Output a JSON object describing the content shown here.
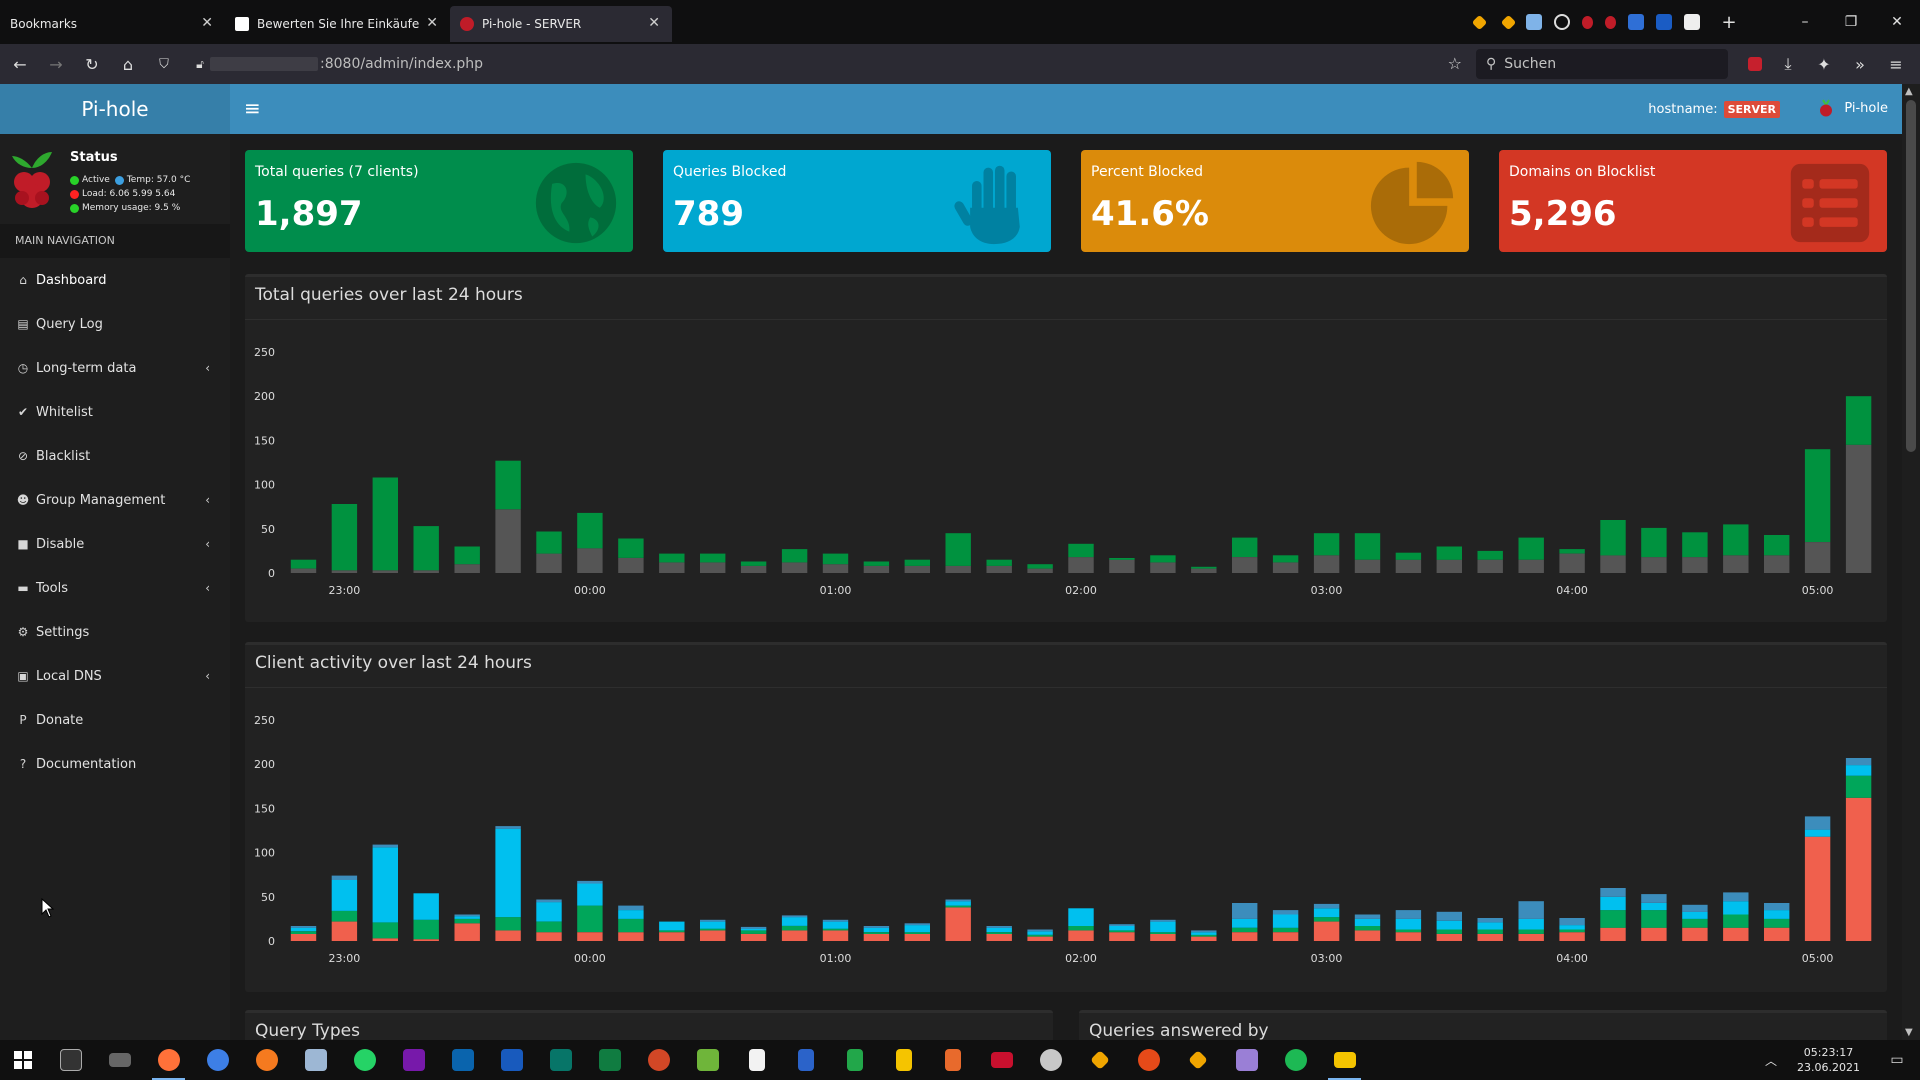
{
  "browser": {
    "tabs": [
      {
        "title": "Bookmarks",
        "active": false
      },
      {
        "title": "Bewerten Sie Ihre Einkäufe",
        "active": false
      },
      {
        "title": "Pi-hole - SERVER",
        "active": true
      }
    ],
    "url_suffix": ":8080/admin/index.php",
    "search_placeholder": "Suchen",
    "new_tab_label": "+"
  },
  "app": {
    "logo_text": "Pi-hole",
    "hostname_label": "hostname:",
    "hostname_value": "SERVER",
    "user_label": "Pi-hole"
  },
  "status": {
    "title": "Status",
    "active_label": "Active",
    "temp_label": "Temp: 57.0 °C",
    "load_label": "Load: 6.06 5.99 5.64",
    "memory_label": "Memory usage: 9.5 %"
  },
  "sidebar": {
    "header": "MAIN NAVIGATION",
    "items": [
      {
        "label": "Dashboard",
        "icon": "home-icon",
        "chevron": false,
        "active": true
      },
      {
        "label": "Query Log",
        "icon": "file-icon",
        "chevron": false
      },
      {
        "label": "Long-term data",
        "icon": "clock-icon",
        "chevron": true
      },
      {
        "label": "Whitelist",
        "icon": "check-circle-icon",
        "chevron": false
      },
      {
        "label": "Blacklist",
        "icon": "ban-icon",
        "chevron": false
      },
      {
        "label": "Group Management",
        "icon": "users-icon",
        "chevron": true
      },
      {
        "label": "Disable",
        "icon": "stop-icon",
        "chevron": true
      },
      {
        "label": "Tools",
        "icon": "folder-icon",
        "chevron": true
      },
      {
        "label": "Settings",
        "icon": "gears-icon",
        "chevron": false
      },
      {
        "label": "Local DNS",
        "icon": "address-book-icon",
        "chevron": true
      },
      {
        "label": "Donate",
        "icon": "paypal-icon",
        "chevron": false
      },
      {
        "label": "Documentation",
        "icon": "question-circle-icon",
        "chevron": false
      }
    ]
  },
  "stats": [
    {
      "label": "Total queries (7 clients)",
      "value": "1,897",
      "color": "#008d4c",
      "icon": "globe-icon"
    },
    {
      "label": "Queries Blocked",
      "value": "789",
      "color": "#00a7d0",
      "icon": "hand-icon"
    },
    {
      "label": "Percent Blocked",
      "value": "41.6%",
      "color": "#db8b0b",
      "icon": "pie-chart-icon"
    },
    {
      "label": "Domains on Blocklist",
      "value": "5,296",
      "color": "#d33724",
      "icon": "list-icon"
    }
  ],
  "panels": {
    "queries_title": "Total queries over last 24 hours",
    "clients_title": "Client activity over last 24 hours",
    "query_types_title": "Query Types",
    "answered_by_title": "Queries answered by"
  },
  "taskbar": {
    "time": "05:23:17",
    "date": "23.06.2021"
  },
  "chart_data": [
    {
      "type": "bar",
      "stacked": true,
      "title": "Total queries over last 24 hours",
      "ylim": [
        0,
        250
      ],
      "yticks": [
        0,
        50,
        100,
        150,
        200,
        250
      ],
      "xtick_labels": [
        "23:00",
        "00:00",
        "01:00",
        "02:00",
        "03:00",
        "04:00",
        "05:00"
      ],
      "xtick_bar_index": [
        1,
        7,
        13,
        19,
        25,
        31,
        37
      ],
      "colors": {
        "blocked": "#555555",
        "permitted": "#00923f"
      },
      "series": [
        {
          "name": "blocked",
          "values": [
            5,
            3,
            3,
            3,
            10,
            72,
            22,
            28,
            17,
            12,
            12,
            8,
            12,
            10,
            8,
            8,
            8,
            8,
            5,
            18,
            15,
            12,
            5,
            18,
            12,
            20,
            15,
            15,
            15,
            15,
            15,
            22,
            20,
            18,
            18,
            20,
            20,
            35,
            145
          ]
        },
        {
          "name": "permitted",
          "values": [
            10,
            75,
            105,
            50,
            20,
            55,
            25,
            40,
            22,
            10,
            10,
            5,
            15,
            12,
            5,
            7,
            37,
            7,
            5,
            15,
            2,
            8,
            2,
            22,
            8,
            25,
            30,
            8,
            15,
            10,
            25,
            5,
            40,
            33,
            28,
            35,
            23,
            105,
            55
          ]
        }
      ]
    },
    {
      "type": "bar",
      "stacked": true,
      "title": "Client activity over last 24 hours",
      "ylim": [
        0,
        250
      ],
      "yticks": [
        0,
        50,
        100,
        150,
        200,
        250
      ],
      "xtick_labels": [
        "23:00",
        "00:00",
        "01:00",
        "02:00",
        "03:00",
        "04:00",
        "05:00"
      ],
      "xtick_bar_index": [
        1,
        7,
        13,
        19,
        25,
        31,
        37
      ],
      "colors": [
        "#f0604d",
        "#00a65a",
        "#00c0ef",
        "#3c8dbc"
      ],
      "series": [
        {
          "name": "client-1",
          "values": [
            8,
            22,
            3,
            2,
            20,
            12,
            10,
            10,
            10,
            10,
            12,
            8,
            12,
            12,
            8,
            8,
            38,
            8,
            5,
            12,
            10,
            8,
            5,
            10,
            10,
            22,
            12,
            10,
            8,
            8,
            8,
            10,
            15,
            15,
            15,
            15,
            15,
            118,
            162
          ]
        },
        {
          "name": "client-2",
          "values": [
            3,
            12,
            18,
            22,
            5,
            15,
            12,
            30,
            15,
            2,
            2,
            4,
            5,
            2,
            2,
            2,
            2,
            2,
            2,
            5,
            2,
            2,
            2,
            5,
            5,
            5,
            5,
            3,
            5,
            5,
            5,
            3,
            20,
            20,
            10,
            15,
            10,
            0,
            25
          ]
        },
        {
          "name": "client-3",
          "values": [
            4,
            35,
            85,
            30,
            3,
            100,
            22,
            25,
            10,
            10,
            8,
            2,
            10,
            8,
            5,
            8,
            5,
            5,
            4,
            20,
            5,
            12,
            3,
            10,
            15,
            10,
            8,
            12,
            10,
            8,
            12,
            5,
            15,
            8,
            8,
            15,
            10,
            8,
            12
          ]
        },
        {
          "name": "client-4",
          "values": [
            2,
            5,
            3,
            0,
            2,
            3,
            3,
            3,
            5,
            0,
            2,
            2,
            2,
            2,
            2,
            2,
            2,
            2,
            2,
            0,
            2,
            2,
            2,
            18,
            5,
            5,
            5,
            10,
            10,
            5,
            20,
            8,
            10,
            10,
            8,
            10,
            8,
            15,
            8
          ]
        }
      ]
    }
  ]
}
